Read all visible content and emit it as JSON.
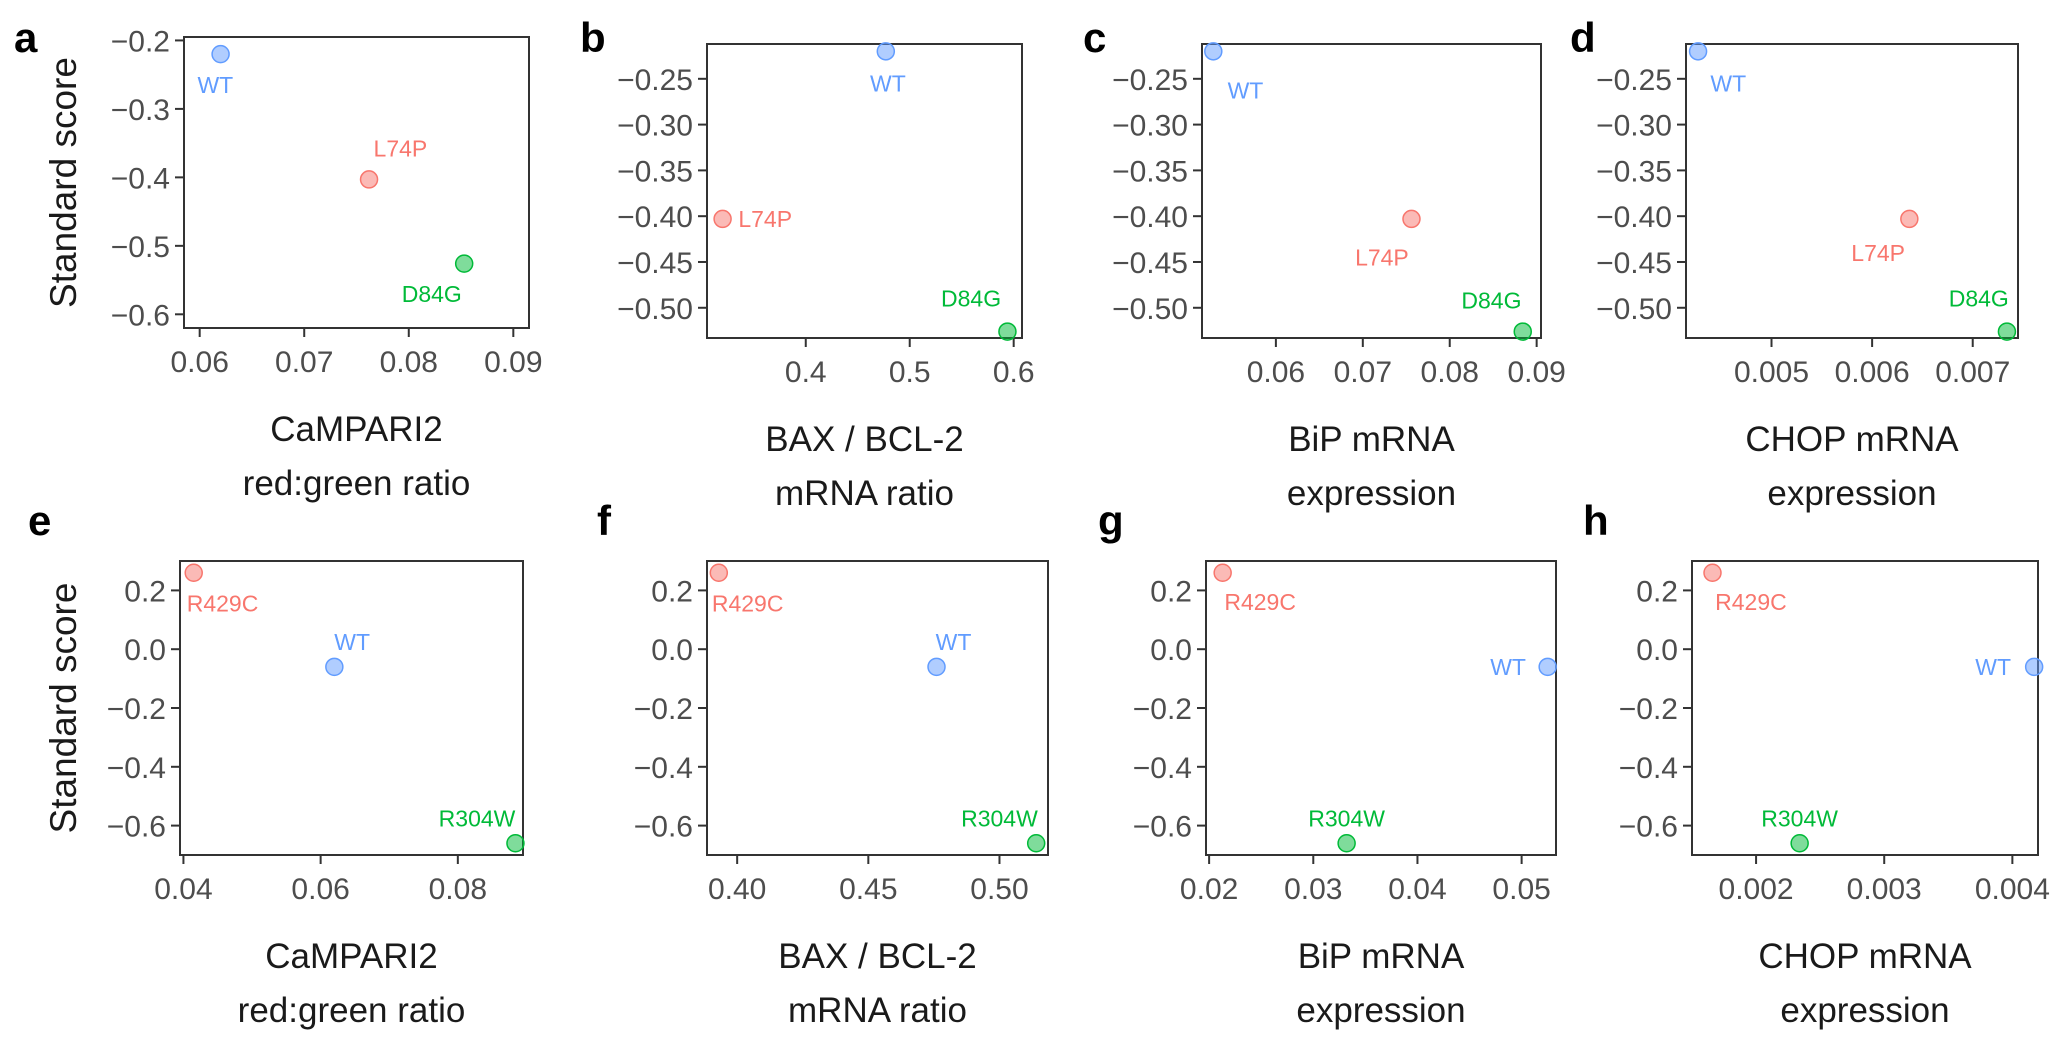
{
  "colors": {
    "WT": "#619CFF",
    "L74P": "#F8766D",
    "D84G": "#00BA38",
    "R429C": "#F8766D",
    "R304W": "#00BA38"
  },
  "chart_data": [
    {
      "panel": "a",
      "type": "scatter",
      "xlabel": [
        "CaMPARI2",
        "red:green ratio"
      ],
      "ylabel": "Standard score",
      "xlim": [
        0.0585,
        0.0915
      ],
      "ylim": [
        -0.62,
        -0.195
      ],
      "xticks": [
        {
          "v": 0.06,
          "label": "0.06"
        },
        {
          "v": 0.07,
          "label": "0.07"
        },
        {
          "v": 0.08,
          "label": "0.08"
        },
        {
          "v": 0.09,
          "label": "0.09"
        }
      ],
      "yticks": [
        {
          "v": -0.2,
          "label": "−0.2"
        },
        {
          "v": -0.3,
          "label": "−0.3"
        },
        {
          "v": -0.4,
          "label": "−0.4"
        },
        {
          "v": -0.5,
          "label": "−0.5"
        },
        {
          "v": -0.6,
          "label": "−0.6"
        }
      ],
      "points": [
        {
          "label": "WT",
          "x": 0.062,
          "y": -0.22,
          "lx": 0.0615,
          "ly": -0.265
        },
        {
          "label": "L74P",
          "x": 0.0762,
          "y": -0.403,
          "lx": 0.0792,
          "ly": -0.358
        },
        {
          "label": "D84G",
          "x": 0.0853,
          "y": -0.526,
          "lx": 0.0822,
          "ly": -0.57
        }
      ]
    },
    {
      "panel": "b",
      "type": "scatter",
      "xlabel": [
        "BAX / BCL-2",
        "mRNA ratio"
      ],
      "ylabel": "",
      "xlim": [
        0.305,
        0.608
      ],
      "ylim": [
        -0.533,
        -0.212
      ],
      "xticks": [
        {
          "v": 0.4,
          "label": "0.4"
        },
        {
          "v": 0.5,
          "label": "0.5"
        },
        {
          "v": 0.6,
          "label": "0.6"
        }
      ],
      "yticks": [
        {
          "v": -0.25,
          "label": "−0.25"
        },
        {
          "v": -0.3,
          "label": "−0.30"
        },
        {
          "v": -0.35,
          "label": "−0.35"
        },
        {
          "v": -0.4,
          "label": "−0.40"
        },
        {
          "v": -0.45,
          "label": "−0.45"
        },
        {
          "v": -0.5,
          "label": "−0.50"
        }
      ],
      "points": [
        {
          "label": "WT",
          "x": 0.477,
          "y": -0.22,
          "lx": 0.479,
          "ly": -0.255
        },
        {
          "label": "L74P",
          "x": 0.32,
          "y": -0.403,
          "lx": 0.361,
          "ly": -0.403
        },
        {
          "label": "D84G",
          "x": 0.594,
          "y": -0.526,
          "lx": 0.559,
          "ly": -0.49
        }
      ]
    },
    {
      "panel": "c",
      "type": "scatter",
      "xlabel": [
        "BiP mRNA",
        "expression"
      ],
      "ylabel": "",
      "xlim": [
        0.0515,
        0.0905
      ],
      "ylim": [
        -0.533,
        -0.212
      ],
      "xticks": [
        {
          "v": 0.06,
          "label": "0.06"
        },
        {
          "v": 0.07,
          "label": "0.07"
        },
        {
          "v": 0.08,
          "label": "0.08"
        },
        {
          "v": 0.09,
          "label": "0.09"
        }
      ],
      "yticks": [
        {
          "v": -0.25,
          "label": "−0.25"
        },
        {
          "v": -0.3,
          "label": "−0.30"
        },
        {
          "v": -0.35,
          "label": "−0.35"
        },
        {
          "v": -0.4,
          "label": "−0.40"
        },
        {
          "v": -0.45,
          "label": "−0.45"
        },
        {
          "v": -0.5,
          "label": "−0.50"
        }
      ],
      "points": [
        {
          "label": "WT",
          "x": 0.0528,
          "y": -0.22,
          "lx": 0.0565,
          "ly": -0.263
        },
        {
          "label": "L74P",
          "x": 0.0756,
          "y": -0.403,
          "lx": 0.0722,
          "ly": -0.445
        },
        {
          "label": "D84G",
          "x": 0.0884,
          "y": -0.526,
          "lx": 0.0848,
          "ly": -0.492
        }
      ]
    },
    {
      "panel": "d",
      "type": "scatter",
      "xlabel": [
        "CHOP mRNA",
        "expression"
      ],
      "ylabel": "",
      "xlim": [
        0.00415,
        0.00745
      ],
      "ylim": [
        -0.533,
        -0.212
      ],
      "xticks": [
        {
          "v": 0.005,
          "label": "0.005"
        },
        {
          "v": 0.006,
          "label": "0.006"
        },
        {
          "v": 0.007,
          "label": "0.007"
        }
      ],
      "yticks": [
        {
          "v": -0.25,
          "label": "−0.25"
        },
        {
          "v": -0.3,
          "label": "−0.30"
        },
        {
          "v": -0.35,
          "label": "−0.35"
        },
        {
          "v": -0.4,
          "label": "−0.40"
        },
        {
          "v": -0.45,
          "label": "−0.45"
        },
        {
          "v": -0.5,
          "label": "−0.50"
        }
      ],
      "points": [
        {
          "label": "WT",
          "x": 0.00427,
          "y": -0.22,
          "lx": 0.00457,
          "ly": -0.255
        },
        {
          "label": "L74P",
          "x": 0.00637,
          "y": -0.403,
          "lx": 0.00606,
          "ly": -0.44
        },
        {
          "label": "D84G",
          "x": 0.00734,
          "y": -0.526,
          "lx": 0.00706,
          "ly": -0.49
        }
      ]
    },
    {
      "panel": "e",
      "type": "scatter",
      "xlabel": [
        "CaMPARI2",
        "red:green ratio"
      ],
      "ylabel": "Standard score",
      "xlim": [
        0.0395,
        0.0895
      ],
      "ylim": [
        -0.7,
        0.3
      ],
      "xticks": [
        {
          "v": 0.04,
          "label": "0.04"
        },
        {
          "v": 0.06,
          "label": "0.06"
        },
        {
          "v": 0.08,
          "label": "0.08"
        }
      ],
      "yticks": [
        {
          "v": 0.2,
          "label": "0.2"
        },
        {
          "v": 0.0,
          "label": "0.0"
        },
        {
          "v": -0.2,
          "label": "−0.2"
        },
        {
          "v": -0.4,
          "label": "−0.4"
        },
        {
          "v": -0.6,
          "label": "−0.6"
        }
      ],
      "points": [
        {
          "label": "R429C",
          "x": 0.0415,
          "y": 0.26,
          "lx": 0.0457,
          "ly": 0.155
        },
        {
          "label": "WT",
          "x": 0.062,
          "y": -0.06,
          "lx": 0.0646,
          "ly": 0.025
        },
        {
          "label": "R304W",
          "x": 0.0884,
          "y": -0.66,
          "lx": 0.0828,
          "ly": -0.575
        }
      ]
    },
    {
      "panel": "f",
      "type": "scatter",
      "xlabel": [
        "BAX / BCL-2",
        "mRNA ratio"
      ],
      "ylabel": "",
      "xlim": [
        0.3885,
        0.5185
      ],
      "ylim": [
        -0.7,
        0.3
      ],
      "xticks": [
        {
          "v": 0.4,
          "label": "0.40"
        },
        {
          "v": 0.45,
          "label": "0.45"
        },
        {
          "v": 0.5,
          "label": "0.50"
        }
      ],
      "yticks": [
        {
          "v": 0.2,
          "label": "0.2"
        },
        {
          "v": 0.0,
          "label": "0.0"
        },
        {
          "v": -0.2,
          "label": "−0.2"
        },
        {
          "v": -0.4,
          "label": "−0.4"
        },
        {
          "v": -0.6,
          "label": "−0.6"
        }
      ],
      "points": [
        {
          "label": "R429C",
          "x": 0.393,
          "y": 0.26,
          "lx": 0.404,
          "ly": 0.155
        },
        {
          "label": "WT",
          "x": 0.476,
          "y": -0.06,
          "lx": 0.4825,
          "ly": 0.025
        },
        {
          "label": "R304W",
          "x": 0.514,
          "y": -0.66,
          "lx": 0.5,
          "ly": -0.575
        }
      ]
    },
    {
      "panel": "g",
      "type": "scatter",
      "xlabel": [
        "BiP mRNA",
        "expression"
      ],
      "ylabel": "",
      "xlim": [
        0.0197,
        0.0533
      ],
      "ylim": [
        -0.7,
        0.3
      ],
      "xticks": [
        {
          "v": 0.02,
          "label": "0.02"
        },
        {
          "v": 0.03,
          "label": "0.03"
        },
        {
          "v": 0.04,
          "label": "0.04"
        },
        {
          "v": 0.05,
          "label": "0.05"
        }
      ],
      "yticks": [
        {
          "v": 0.2,
          "label": "0.2"
        },
        {
          "v": 0.0,
          "label": "0.0"
        },
        {
          "v": -0.2,
          "label": "−0.2"
        },
        {
          "v": -0.4,
          "label": "−0.4"
        },
        {
          "v": -0.6,
          "label": "−0.6"
        }
      ],
      "points": [
        {
          "label": "R429C",
          "x": 0.0213,
          "y": 0.26,
          "lx": 0.0249,
          "ly": 0.16
        },
        {
          "label": "WT",
          "x": 0.0525,
          "y": -0.06,
          "lx": 0.0487,
          "ly": -0.06
        },
        {
          "label": "R304W",
          "x": 0.0332,
          "y": -0.66,
          "lx": 0.0332,
          "ly": -0.575
        }
      ]
    },
    {
      "panel": "h",
      "type": "scatter",
      "xlabel": [
        "CHOP mRNA",
        "expression"
      ],
      "ylabel": "",
      "xlim": [
        0.0015,
        0.0042
      ],
      "ylim": [
        -0.7,
        0.3
      ],
      "xticks": [
        {
          "v": 0.002,
          "label": "0.002"
        },
        {
          "v": 0.003,
          "label": "0.003"
        },
        {
          "v": 0.004,
          "label": "0.004"
        }
      ],
      "yticks": [
        {
          "v": 0.2,
          "label": "0.2"
        },
        {
          "v": 0.0,
          "label": "0.0"
        },
        {
          "v": -0.2,
          "label": "−0.2"
        },
        {
          "v": -0.4,
          "label": "−0.4"
        },
        {
          "v": -0.6,
          "label": "−0.6"
        }
      ],
      "points": [
        {
          "label": "R429C",
          "x": 0.00166,
          "y": 0.26,
          "lx": 0.00196,
          "ly": 0.16
        },
        {
          "label": "WT",
          "x": 0.00417,
          "y": -0.06,
          "lx": 0.00385,
          "ly": -0.06
        },
        {
          "label": "R304W",
          "x": 0.00234,
          "y": -0.66,
          "lx": 0.00234,
          "ly": -0.575
        }
      ]
    }
  ]
}
